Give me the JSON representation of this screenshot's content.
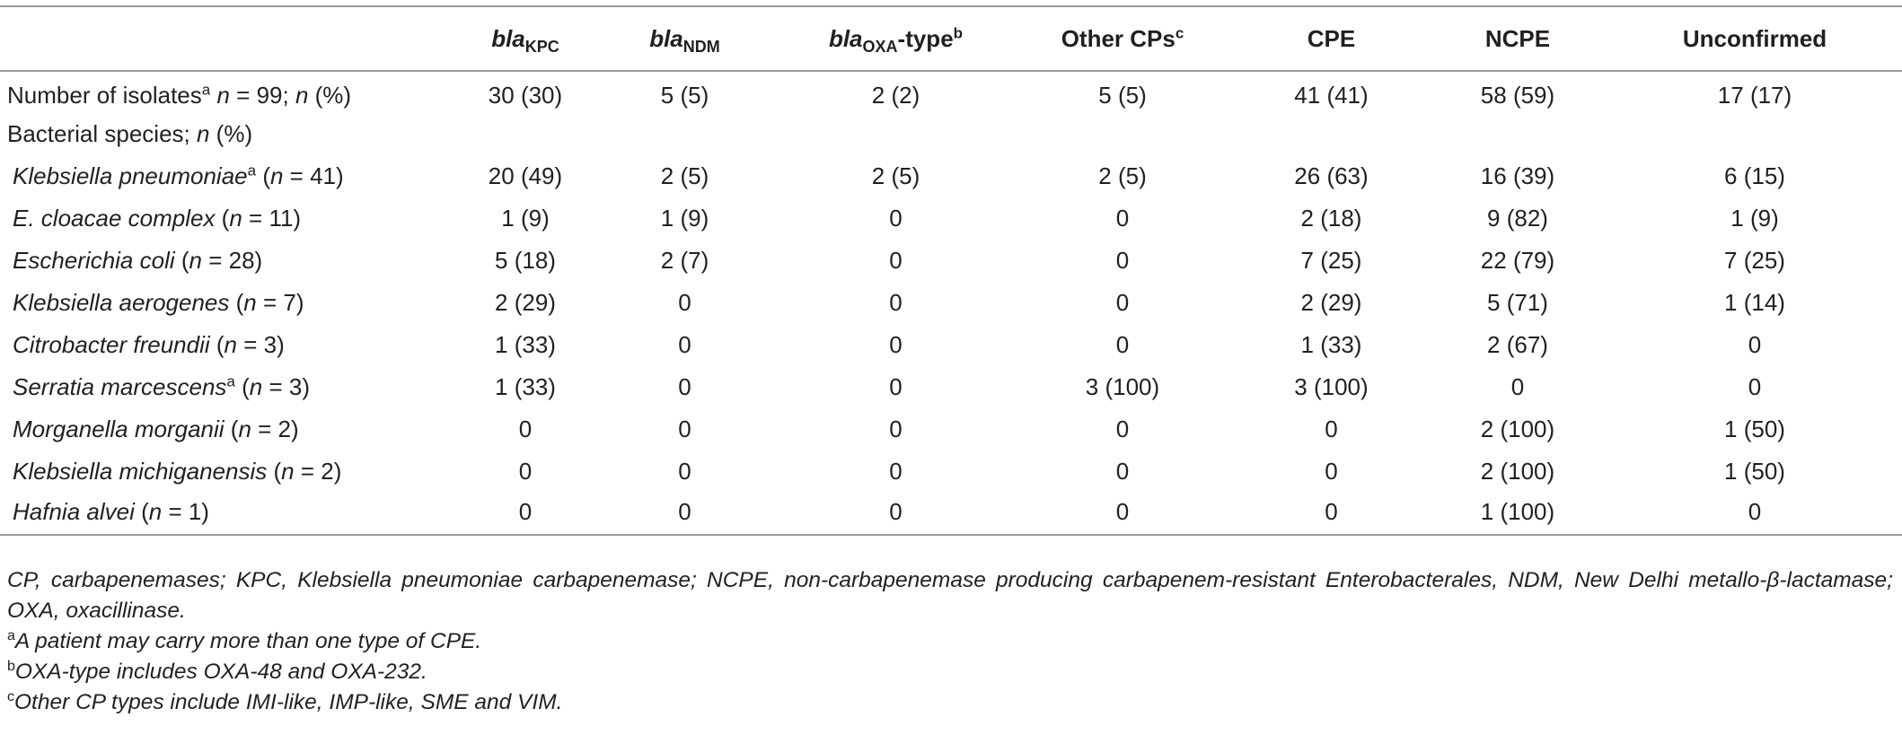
{
  "header": {
    "kpc": {
      "prefix": "bla",
      "sub": "KPC"
    },
    "ndm": {
      "prefix": "bla",
      "sub": "NDM"
    },
    "oxa": {
      "prefix": "bla",
      "sub": "OXA",
      "suffix": "-type",
      "sup": "b"
    },
    "other": {
      "text": "Other CPs",
      "sup": "c"
    },
    "cpe": "CPE",
    "ncpe": "NCPE",
    "unconfirmed": "Unconfirmed"
  },
  "row_isolates": {
    "label": "Number of isolates",
    "sup": "a",
    "n_pre": "n",
    "n_mid": " = 99; ",
    "n_var": "n",
    "n_post": " (%)",
    "values": [
      "30 (30)",
      "5 (5)",
      "2 (2)",
      "5 (5)",
      "41 (41)",
      "58 (59)",
      "17 (17)"
    ]
  },
  "row_species_header": {
    "label": "Bacterial species; ",
    "n_var": "n",
    "n_post": " (%)"
  },
  "species": [
    {
      "name": "Klebsiella pneumoniae",
      "sup": "a",
      "count": " = 41)",
      "values": [
        "20 (49)",
        "2 (5)",
        "2 (5)",
        "2 (5)",
        "26 (63)",
        "16 (39)",
        "6 (15)"
      ]
    },
    {
      "name": "E. cloacae complex",
      "sup": "",
      "count": " = 11)",
      "values": [
        "1 (9)",
        "1 (9)",
        "0",
        "0",
        "2 (18)",
        "9 (82)",
        "1 (9)"
      ]
    },
    {
      "name": "Escherichia coli",
      "sup": "",
      "count": " = 28)",
      "values": [
        "5 (18)",
        "2 (7)",
        "0",
        "0",
        "7 (25)",
        "22 (79)",
        "7 (25)"
      ]
    },
    {
      "name": "Klebsiella aerogenes",
      "sup": "",
      "count": " = 7)",
      "values": [
        "2 (29)",
        "0",
        "0",
        "0",
        "2 (29)",
        "5 (71)",
        "1 (14)"
      ]
    },
    {
      "name": "Citrobacter freundii",
      "sup": "",
      "count": " = 3)",
      "values": [
        "1 (33)",
        "0",
        "0",
        "0",
        "1 (33)",
        "2 (67)",
        "0"
      ]
    },
    {
      "name": "Serratia marcescens",
      "sup": "a",
      "count": " = 3)",
      "values": [
        "1 (33)",
        "0",
        "0",
        "3 (100)",
        "3 (100)",
        "0",
        "0"
      ]
    },
    {
      "name": "Morganella morganii",
      "sup": "",
      "count": " = 2)",
      "values": [
        "0",
        "0",
        "0",
        "0",
        "0",
        "2 (100)",
        "1 (50)"
      ]
    },
    {
      "name": "Klebsiella michiganensis",
      "sup": "",
      "count": " = 2)",
      "values": [
        "0",
        "0",
        "0",
        "0",
        "0",
        "2 (100)",
        "1 (50)"
      ]
    },
    {
      "name": "Hafnia alvei",
      "sup": "",
      "count": " = 1)",
      "values": [
        "0",
        "0",
        "0",
        "0",
        "0",
        "1 (100)",
        "0"
      ]
    }
  ],
  "species_paren": " (",
  "species_n": "n",
  "footnotes": {
    "abbrev": "CP, carbapenemases; KPC, Klebsiella pneumoniae carbapenemase; NCPE, non-carbapenemase producing carbapenem-resistant Enterobacterales, NDM, New Delhi metallo-β-lactamase; OXA, oxacillinase.",
    "a": {
      "mark": "a",
      "text": "A patient may carry more than one type of CPE."
    },
    "b": {
      "mark": "b",
      "text": "OXA-type includes OXA-48 and OXA-232."
    },
    "c": {
      "mark": "c",
      "text": "Other CP types include IMI-like, IMP-like, SME and VIM."
    }
  }
}
